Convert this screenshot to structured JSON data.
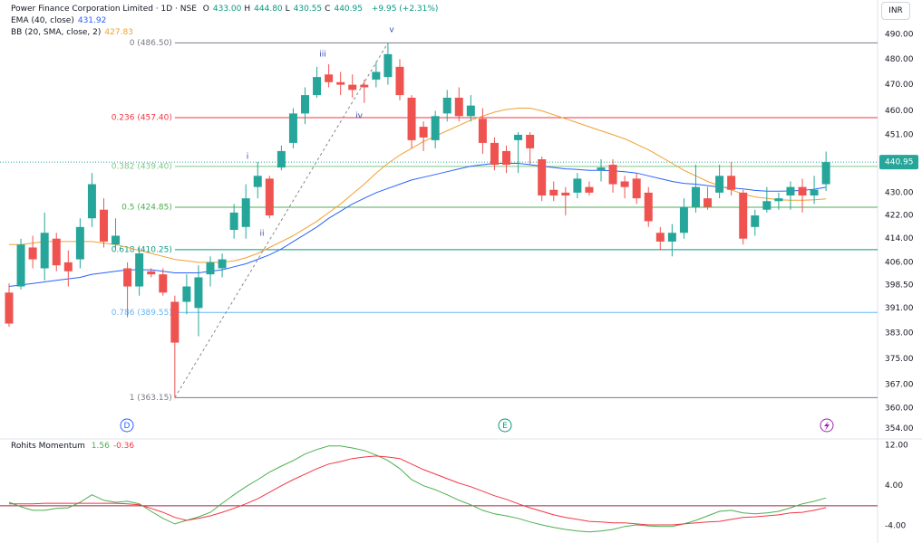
{
  "chart_data": [
    {
      "type": "candlestick",
      "title": "Power Finance Corporation Limited · 1D · NSE",
      "header_stats": [
        {
          "label": "O",
          "value": "433.00"
        },
        {
          "label": "H",
          "value": "444.80"
        },
        {
          "label": "L",
          "value": "430.55"
        },
        {
          "label": "C",
          "value": "440.95"
        }
      ],
      "change": "+9.95 (+2.31%)",
      "currency": "INR",
      "up_color": "#26a69a",
      "down_color": "#ef5350",
      "log_scale": true,
      "ylim": [
        351,
        504
      ],
      "yticks": [
        {
          "value": 490,
          "label": "490.00"
        },
        {
          "value": 480,
          "label": "480.00"
        },
        {
          "value": 470,
          "label": "470.00"
        },
        {
          "value": 460,
          "label": "460.00"
        },
        {
          "value": 451,
          "label": "451.00"
        },
        {
          "value": 430,
          "label": "430.00"
        },
        {
          "value": 422,
          "label": "422.00"
        },
        {
          "value": 414,
          "label": "414.00"
        },
        {
          "value": 406,
          "label": "406.00"
        },
        {
          "value": 398.5,
          "label": "398.50"
        },
        {
          "value": 391,
          "label": "391.00"
        },
        {
          "value": 383,
          "label": "383.00"
        },
        {
          "value": 375,
          "label": "375.00"
        },
        {
          "value": 367,
          "label": "367.00"
        },
        {
          "value": 360,
          "label": "360.00"
        },
        {
          "value": 354,
          "label": "354.00"
        }
      ],
      "last_price": {
        "value": 440.95,
        "label": "440.95"
      },
      "open": [
        396,
        398,
        411,
        404,
        414,
        406,
        407,
        421,
        424,
        412,
        404,
        398,
        403,
        402,
        393,
        393,
        391,
        402,
        404,
        417,
        418,
        432,
        435,
        439,
        448,
        459,
        466,
        474,
        471,
        470,
        470,
        472,
        473,
        477,
        465,
        454,
        449,
        459,
        465,
        458,
        457,
        448,
        445,
        449,
        451,
        442,
        431,
        430,
        430,
        432,
        438,
        440,
        434,
        435,
        430,
        416,
        413,
        416,
        425,
        428,
        430,
        436,
        430,
        418,
        424,
        427,
        429,
        432,
        429,
        433
      ],
      "high": [
        399,
        414,
        415,
        423,
        416,
        410,
        421,
        437,
        428,
        421,
        406,
        411,
        404,
        404,
        395,
        402,
        405,
        408,
        409,
        426,
        433,
        441,
        436,
        447,
        461,
        469,
        477,
        478,
        475,
        474,
        472,
        479,
        486.5,
        480,
        466,
        456,
        460,
        468,
        469,
        466,
        461,
        450,
        447,
        452,
        452,
        443,
        434,
        432,
        437,
        434,
        442,
        442,
        436,
        437,
        432,
        418,
        419,
        428,
        440,
        432,
        440,
        441,
        431,
        424,
        432,
        430,
        434,
        435,
        436,
        444.8
      ],
      "low": [
        385,
        397,
        404,
        400,
        403,
        398,
        404,
        418,
        411,
        410,
        388,
        395,
        401,
        395,
        363.15,
        389,
        382,
        398,
        401,
        414,
        414,
        428,
        421,
        438,
        446,
        455,
        465,
        469,
        466,
        465,
        463,
        469,
        470,
        464,
        446,
        445,
        446,
        456,
        456,
        456,
        444,
        438,
        437,
        437,
        440,
        427,
        427,
        422,
        428,
        429,
        434,
        430,
        428,
        426,
        418,
        410,
        408,
        414,
        423,
        424,
        428,
        429,
        412,
        415,
        423,
        424,
        424,
        423,
        426,
        430.55
      ],
      "close": [
        386,
        412,
        407,
        416,
        405,
        403,
        418,
        433,
        413,
        415,
        398,
        409,
        402,
        396,
        380,
        398,
        401,
        406,
        407,
        423,
        428,
        436,
        422,
        445,
        459,
        466,
        473,
        471,
        470,
        468,
        469,
        475,
        482,
        466,
        449,
        450,
        458,
        465,
        458,
        462,
        448,
        440,
        440,
        451,
        446,
        429,
        429,
        429,
        435,
        430,
        439,
        433,
        432,
        428,
        420,
        413,
        416,
        425,
        432,
        425,
        436,
        431,
        414,
        422,
        427,
        428,
        432,
        429,
        431,
        440.95
      ],
      "indicators": [
        {
          "name": "EMA (40, close)",
          "color": "#2962ff",
          "value_label": "431.92",
          "values": [
            398,
            398.5,
            399,
            399.5,
            400,
            400.5,
            401,
            402,
            402.5,
            403,
            403.5,
            403.5,
            403.5,
            403,
            402.5,
            402.5,
            402.5,
            403,
            403.5,
            404.5,
            405.5,
            407,
            408.5,
            410.5,
            413,
            415.5,
            418,
            421,
            423.5,
            426,
            428,
            430,
            431.5,
            433,
            434.5,
            435.5,
            436.5,
            437.5,
            438.5,
            439.5,
            440,
            440.5,
            440.5,
            440.5,
            440,
            439.5,
            439,
            438.5,
            438.3,
            438,
            438,
            437.8,
            437.5,
            437,
            436,
            435,
            434,
            433.3,
            433,
            432.5,
            432,
            431.7,
            431.3,
            430.8,
            430.5,
            430.5,
            430.6,
            430.8,
            431.2,
            431.92
          ]
        },
        {
          "name": "BB (20, SMA, close, 2)",
          "color": "#f0a030",
          "value_label": "427.83",
          "values": [
            412,
            412,
            412.5,
            413,
            413,
            413,
            413,
            413,
            412.5,
            412,
            411,
            410,
            409,
            408,
            407,
            406.5,
            406,
            406,
            406,
            406.5,
            407.5,
            409,
            411,
            413,
            415,
            417.5,
            420,
            423,
            426,
            429.5,
            433,
            437,
            440.5,
            443.5,
            446,
            448.5,
            450.5,
            452.5,
            454.5,
            456.5,
            458,
            459.5,
            460.5,
            461,
            461,
            460,
            458.5,
            457,
            455.5,
            454,
            452.5,
            451,
            449.5,
            447.5,
            445.5,
            443,
            440.5,
            438,
            436,
            434,
            432.5,
            431,
            429.5,
            428.5,
            428,
            427.5,
            427.3,
            427.3,
            427.5,
            427.83
          ]
        }
      ],
      "fib_levels": [
        {
          "value": 486.5,
          "label": "0 (486.50)",
          "color": "#787b86"
        },
        {
          "value": 457.4,
          "label": "0.236 (457.40)",
          "color": "#f23645"
        },
        {
          "value": 439.4,
          "label": "0.382 (439.40)",
          "color": "#81c784"
        },
        {
          "value": 424.85,
          "label": "0.5 (424.85)",
          "color": "#4caf50"
        },
        {
          "value": 410.25,
          "label": "0.618 (410.25)",
          "color": "#089981"
        },
        {
          "value": 389.55,
          "label": "0.786 (389.55)",
          "color": "#64b5f6"
        },
        {
          "value": 363.15,
          "label": "1 (363.15)",
          "color": "#787b86"
        }
      ],
      "annotations": [
        "i",
        "ii",
        "iii",
        "iv",
        "v"
      ],
      "events": [
        "D",
        "E"
      ]
    },
    {
      "type": "line",
      "title": "Rohits Momentum",
      "ylim": [
        -7.4,
        13.3
      ],
      "yticks": [
        {
          "value": 12,
          "label": "12.00"
        },
        {
          "value": 4,
          "label": "4.00"
        },
        {
          "value": -4,
          "label": "-4.00"
        }
      ],
      "hline": 0,
      "series": [
        {
          "color": "#4caf50",
          "value_label": "1.56",
          "values": [
            0.7,
            -0.2,
            -0.9,
            -0.9,
            -0.5,
            -0.4,
            0.7,
            2.2,
            1.1,
            0.7,
            0.9,
            0.4,
            -1.1,
            -2.5,
            -3.6,
            -2.9,
            -2.2,
            -1.3,
            0.5,
            2.2,
            3.8,
            5.2,
            6.7,
            7.9,
            9.0,
            10.3,
            11.2,
            11.9,
            11.9,
            11.5,
            11.0,
            10.1,
            9.0,
            7.4,
            5.2,
            4.0,
            3.2,
            2.2,
            1.1,
            0.2,
            -0.9,
            -1.6,
            -2.0,
            -2.5,
            -3.2,
            -3.8,
            -4.3,
            -4.7,
            -5.0,
            -5.2,
            -5.0,
            -4.7,
            -4.1,
            -3.8,
            -4.0,
            -4.1,
            -4.1,
            -3.6,
            -2.9,
            -2.0,
            -1.1,
            -0.9,
            -1.4,
            -1.6,
            -1.4,
            -1.1,
            -0.4,
            0.4,
            0.9,
            1.56
          ]
        },
        {
          "color": "#f23645",
          "value_label": "-0.36",
          "values": [
            0.4,
            0.4,
            0.4,
            0.5,
            0.5,
            0.5,
            0.5,
            0.5,
            0.5,
            0.5,
            0.4,
            0.2,
            -0.5,
            -1.3,
            -2.3,
            -2.9,
            -2.5,
            -2.0,
            -1.3,
            -0.5,
            0.4,
            1.4,
            2.7,
            4.0,
            5.2,
            6.3,
            7.4,
            8.3,
            8.8,
            9.4,
            9.7,
            9.9,
            9.7,
            9.4,
            8.3,
            7.2,
            6.3,
            5.4,
            4.5,
            3.8,
            2.9,
            2.0,
            1.3,
            0.4,
            -0.4,
            -1.1,
            -1.8,
            -2.3,
            -2.7,
            -3.1,
            -3.2,
            -3.4,
            -3.4,
            -3.6,
            -3.8,
            -3.8,
            -3.8,
            -3.6,
            -3.4,
            -3.2,
            -3.1,
            -2.7,
            -2.3,
            -2.2,
            -2.0,
            -1.8,
            -1.4,
            -1.3,
            -0.9,
            -0.36
          ]
        }
      ]
    }
  ]
}
